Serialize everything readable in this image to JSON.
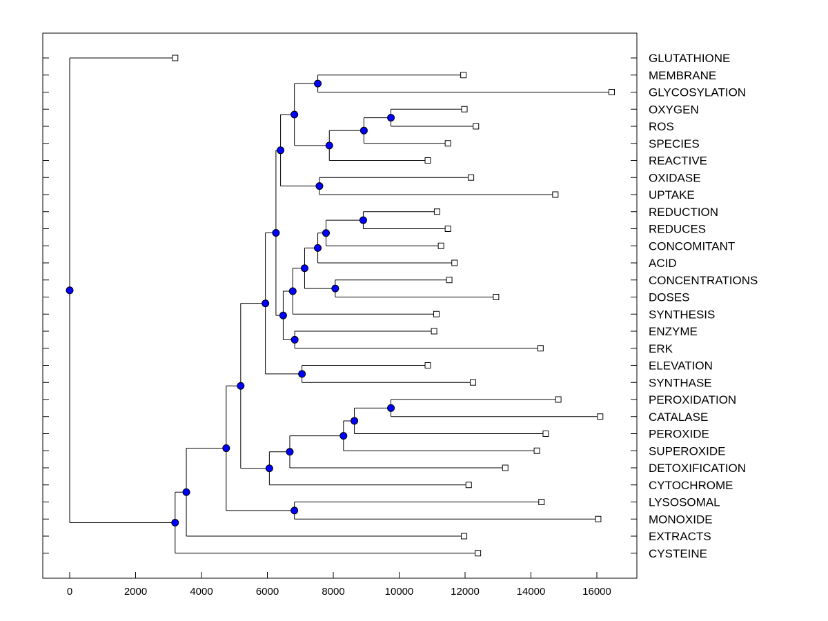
{
  "chart_data": {
    "type": "dendrogram",
    "title": "",
    "xlabel": "",
    "ylabel": "",
    "xlim": [
      -800,
      17000
    ],
    "xticks": [
      0,
      2000,
      4000,
      6000,
      8000,
      10000,
      12000,
      14000,
      16000
    ],
    "xtick_labels": [
      "0",
      "2000",
      "4000",
      "6000",
      "8000",
      "10000",
      "12000",
      "14000",
      "16000"
    ],
    "grid": false,
    "colors": {
      "node": "#0000ff",
      "line": "#000000",
      "leaf_marker": "#ffffff"
    },
    "leaves": [
      {
        "label": "GLUTATHIONE",
        "x": 3200
      },
      {
        "label": "MEMBRANE",
        "x": 11950
      },
      {
        "label": "GLYCOSYLATION",
        "x": 16450
      },
      {
        "label": "OXYGEN",
        "x": 11980
      },
      {
        "label": "ROS",
        "x": 12330
      },
      {
        "label": "SPECIES",
        "x": 11480
      },
      {
        "label": "REACTIVE",
        "x": 10870
      },
      {
        "label": "OXIDASE",
        "x": 12180
      },
      {
        "label": "UPTAKE",
        "x": 14740
      },
      {
        "label": "REDUCTION",
        "x": 11150
      },
      {
        "label": "REDUCES",
        "x": 11480
      },
      {
        "label": "CONCOMITANT",
        "x": 11270
      },
      {
        "label": "ACID",
        "x": 11680
      },
      {
        "label": "CONCENTRATIONS",
        "x": 11520
      },
      {
        "label": "DOSES",
        "x": 12940
      },
      {
        "label": "SYNTHESIS",
        "x": 11130
      },
      {
        "label": "ENZYME",
        "x": 11060
      },
      {
        "label": "ERK",
        "x": 14290
      },
      {
        "label": "ELEVATION",
        "x": 10870
      },
      {
        "label": "SYNTHASE",
        "x": 12240
      },
      {
        "label": "PEROXIDATION",
        "x": 14830
      },
      {
        "label": "CATALASE",
        "x": 16100
      },
      {
        "label": "PEROXIDE",
        "x": 14450
      },
      {
        "label": "SUPEROXIDE",
        "x": 14180
      },
      {
        "label": "DETOXIFICATION",
        "x": 13220
      },
      {
        "label": "CYTOCHROME",
        "x": 12110
      },
      {
        "label": "LYSOSOMAL",
        "x": 14320
      },
      {
        "label": "MONOXIDE",
        "x": 16040
      },
      {
        "label": "EXTRACTS",
        "x": 11970
      },
      {
        "label": "CYSTEINE",
        "x": 12390
      }
    ],
    "nodes": [
      {
        "id": "n_mem_gly",
        "x": 7530,
        "children": [
          "MEMBRANE",
          "GLYCOSYLATION"
        ]
      },
      {
        "id": "n_oxy_ros",
        "x": 9750,
        "children": [
          "OXYGEN",
          "ROS"
        ]
      },
      {
        "id": "n_ors_sp",
        "x": 8930,
        "children": [
          "n_oxy_ros",
          "SPECIES"
        ]
      },
      {
        "id": "n_react",
        "x": 7880,
        "children": [
          "n_ors_sp",
          "REACTIVE"
        ]
      },
      {
        "id": "n_top_a",
        "x": 6820,
        "children": [
          "n_mem_gly",
          "n_react"
        ]
      },
      {
        "id": "n_oxi_upt",
        "x": 7580,
        "children": [
          "OXIDASE",
          "UPTAKE"
        ]
      },
      {
        "id": "n_top_b",
        "x": 6400,
        "children": [
          "n_top_a",
          "n_oxi_upt"
        ]
      },
      {
        "id": "n_red_reds",
        "x": 8910,
        "children": [
          "REDUCTION",
          "REDUCES"
        ]
      },
      {
        "id": "n_conc",
        "x": 7780,
        "children": [
          "n_red_reds",
          "CONCOMITANT"
        ]
      },
      {
        "id": "n_acid",
        "x": 7530,
        "children": [
          "n_conc",
          "ACID"
        ]
      },
      {
        "id": "n_con_dos",
        "x": 8060,
        "children": [
          "CONCENTRATIONS",
          "DOSES"
        ]
      },
      {
        "id": "n_mid_a",
        "x": 7130,
        "children": [
          "n_acid",
          "n_con_dos"
        ]
      },
      {
        "id": "n_synth",
        "x": 6770,
        "children": [
          "n_mid_a",
          "SYNTHESIS"
        ]
      },
      {
        "id": "n_enz_erk",
        "x": 6830,
        "children": [
          "ENZYME",
          "ERK"
        ]
      },
      {
        "id": "n_mid_b",
        "x": 6480,
        "children": [
          "n_synth",
          "n_enz_erk"
        ]
      },
      {
        "id": "n_upper",
        "x": 6260,
        "children": [
          "n_top_b",
          "n_mid_b"
        ]
      },
      {
        "id": "n_ele_syn",
        "x": 7050,
        "children": [
          "ELEVATION",
          "SYNTHASE"
        ]
      },
      {
        "id": "n_upper2",
        "x": 5940,
        "children": [
          "n_upper",
          "n_ele_syn"
        ]
      },
      {
        "id": "n_perox_cat",
        "x": 9750,
        "children": [
          "PEROXIDATION",
          "CATALASE"
        ]
      },
      {
        "id": "n_pc_per",
        "x": 8640,
        "children": [
          "n_perox_cat",
          "PEROXIDE"
        ]
      },
      {
        "id": "n_sup",
        "x": 8310,
        "children": [
          "n_pc_per",
          "SUPEROXIDE"
        ]
      },
      {
        "id": "n_detox",
        "x": 6680,
        "children": [
          "n_sup",
          "DETOXIFICATION"
        ]
      },
      {
        "id": "n_cyto",
        "x": 6060,
        "children": [
          "n_detox",
          "CYTOCHROME"
        ]
      },
      {
        "id": "n_big",
        "x": 5190,
        "children": [
          "n_upper2",
          "n_cyto"
        ]
      },
      {
        "id": "n_lys_mon",
        "x": 6820,
        "children": [
          "LYSOSOMAL",
          "MONOXIDE"
        ]
      },
      {
        "id": "n_big2",
        "x": 4750,
        "children": [
          "n_big",
          "n_lys_mon"
        ]
      },
      {
        "id": "n_ext",
        "x": 3540,
        "children": [
          "n_big2",
          "EXTRACTS"
        ]
      },
      {
        "id": "n_cys",
        "x": 3200,
        "children": [
          "n_ext",
          "CYSTEINE"
        ]
      },
      {
        "id": "n_root",
        "x": 0,
        "children": [
          "GLUTATHIONE",
          "n_cys"
        ]
      }
    ]
  }
}
